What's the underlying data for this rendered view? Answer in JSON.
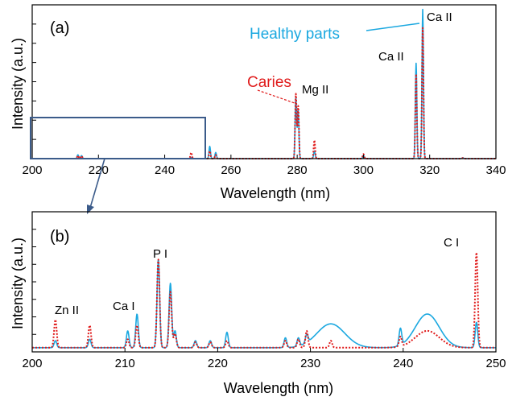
{
  "colors": {
    "healthy": "#1ba8e0",
    "caries": "#e01b1b",
    "zoom_box": "#3b5b8a",
    "axis": "#000000"
  },
  "chart_data": [
    {
      "panel_label": "(a)",
      "type": "line",
      "xlabel": "Wavelength (nm)",
      "ylabel": "Intensity (a.u.)",
      "xlim": [
        200,
        340
      ],
      "ylim": [
        0,
        1
      ],
      "xticks": [
        200,
        220,
        240,
        260,
        280,
        300,
        320,
        340
      ],
      "legend": {
        "healthy": "Healthy parts",
        "caries": "Caries"
      },
      "annotations": [
        "Ca II",
        "Ca II",
        "Mg II"
      ],
      "series": [
        {
          "name": "Healthy parts",
          "color": "#1ba8e0",
          "style": "solid",
          "peaks": [
            [
              213.8,
              0.025
            ],
            [
              214.9,
              0.02
            ],
            [
              248,
              0.008
            ],
            [
              253.6,
              0.08
            ],
            [
              255.4,
              0.04
            ],
            [
              279.6,
              0.4
            ],
            [
              280.3,
              0.32
            ],
            [
              285.2,
              0.05
            ],
            [
              300,
              0.02
            ],
            [
              315.9,
              0.62
            ],
            [
              317.9,
              0.97
            ],
            [
              330,
              0.006
            ]
          ]
        },
        {
          "name": "Caries",
          "color": "#e01b1b",
          "style": "dotted",
          "peaks": [
            [
              213.8,
              0.02
            ],
            [
              214.9,
              0.018
            ],
            [
              248,
              0.04
            ],
            [
              253.6,
              0.05
            ],
            [
              255.4,
              0.025
            ],
            [
              279.6,
              0.42
            ],
            [
              280.3,
              0.34
            ],
            [
              285.2,
              0.12
            ],
            [
              300,
              0.03
            ],
            [
              315.9,
              0.55
            ],
            [
              317.9,
              0.85
            ],
            [
              330,
              0.004
            ]
          ]
        }
      ]
    },
    {
      "panel_label": "(b)",
      "type": "line",
      "xlabel": "Wavelength (nm)",
      "ylabel": "Intensity (a.u.)",
      "xlim": [
        200,
        250
      ],
      "ylim": [
        0,
        1
      ],
      "xticks": [
        200,
        210,
        220,
        230,
        240,
        250
      ],
      "annotations": [
        "Zn II",
        "Ca I",
        "P I",
        "C I"
      ],
      "series": [
        {
          "name": "Healthy parts",
          "color": "#1ba8e0",
          "style": "solid",
          "peaks": [
            [
              202.5,
              0.05
            ],
            [
              206.2,
              0.06
            ],
            [
              210.3,
              0.12
            ],
            [
              211.3,
              0.24
            ],
            [
              213.6,
              0.63
            ],
            [
              214.9,
              0.46
            ],
            [
              215.4,
              0.12
            ],
            [
              217.6,
              0.05
            ],
            [
              219.2,
              0.05
            ],
            [
              221,
              0.11
            ],
            [
              227.3,
              0.07
            ],
            [
              228.7,
              0.06
            ],
            [
              229.6,
              0.06
            ],
            [
              232.2,
              0.17
            ],
            [
              239.7,
              0.12
            ],
            [
              242.6,
              0.24
            ],
            [
              247.9,
              0.18
            ]
          ],
          "broad": [
            [
              232.2,
              1.5
            ],
            [
              242.6,
              1.3
            ]
          ]
        },
        {
          "name": "Caries",
          "color": "#e01b1b",
          "style": "dotted",
          "peaks": [
            [
              202.5,
              0.2
            ],
            [
              206.2,
              0.16
            ],
            [
              210.3,
              0.06
            ],
            [
              211.3,
              0.16
            ],
            [
              213.6,
              0.63
            ],
            [
              214.9,
              0.4
            ],
            [
              215.4,
              0.1
            ],
            [
              217.6,
              0.04
            ],
            [
              219.2,
              0.04
            ],
            [
              221,
              0.05
            ],
            [
              227.3,
              0.05
            ],
            [
              228.7,
              0.06
            ],
            [
              229.6,
              0.12
            ],
            [
              232.2,
              0.05
            ],
            [
              239.7,
              0.07
            ],
            [
              242.6,
              0.12
            ],
            [
              247.9,
              0.68
            ]
          ],
          "broad": [
            [
              242.6,
              1.3
            ]
          ]
        }
      ]
    }
  ]
}
